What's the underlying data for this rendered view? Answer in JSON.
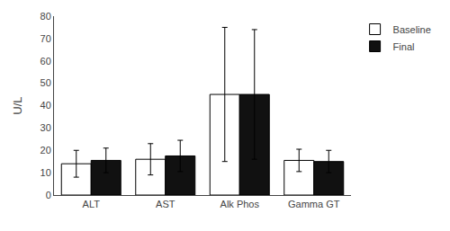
{
  "chart_data": {
    "type": "bar",
    "categories": [
      "ALT",
      "AST",
      "Alk Phos",
      "Gamma GT"
    ],
    "series": [
      {
        "name": "Baseline",
        "color": "#ffffff",
        "values": [
          14.0,
          16.0,
          45.0,
          15.5
        ],
        "errors": [
          6.0,
          7.0,
          30.0,
          5.0
        ]
      },
      {
        "name": "Final",
        "color": "#111111",
        "values": [
          15.5,
          17.5,
          45.0,
          15.0
        ],
        "errors": [
          5.5,
          7.0,
          29.0,
          5.0
        ]
      }
    ],
    "ylabel": "U/L",
    "ylim": [
      0,
      80
    ],
    "yticks": [
      0,
      10,
      20,
      30,
      40,
      50,
      60,
      70,
      80
    ],
    "grid": false,
    "legend": "right"
  }
}
